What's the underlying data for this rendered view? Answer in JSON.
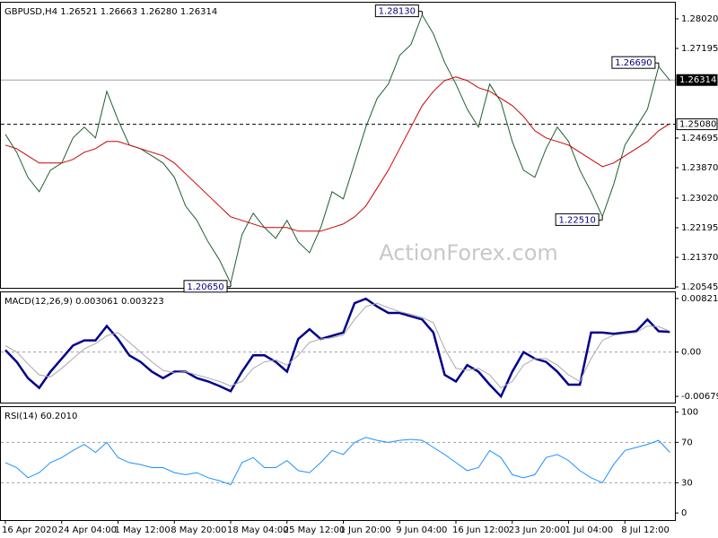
{
  "chart_data": [
    {
      "type": "line",
      "title": "GBPUSD,H4  1.26521 1.26663 1.26280 1.26314",
      "watermark": "ActionForex.com",
      "series": [
        {
          "color": "#1f5f2f",
          "values": [
            1.248,
            1.243,
            1.236,
            1.232,
            1.238,
            1.24,
            1.247,
            1.25,
            1.247,
            1.26,
            1.252,
            1.245,
            1.244,
            1.242,
            1.24,
            1.236,
            1.228,
            1.224,
            1.218,
            1.213,
            1.2065,
            1.22,
            1.226,
            1.222,
            1.219,
            1.224,
            1.218,
            1.215,
            1.222,
            1.232,
            1.23,
            1.24,
            1.25,
            1.258,
            1.262,
            1.27,
            1.273,
            1.2813,
            1.276,
            1.268,
            1.262,
            1.255,
            1.25,
            1.262,
            1.257,
            1.246,
            1.238,
            1.236,
            1.244,
            1.25,
            1.246,
            1.238,
            1.232,
            1.2251,
            1.234,
            1.245,
            1.25,
            1.255,
            1.2669,
            1.263
          ]
        },
        {
          "color": "#cc0000",
          "values": [
            1.245,
            1.244,
            1.242,
            1.24,
            1.24,
            1.24,
            1.241,
            1.243,
            1.244,
            1.246,
            1.246,
            1.245,
            1.244,
            1.243,
            1.242,
            1.24,
            1.237,
            1.234,
            1.231,
            1.228,
            1.225,
            1.224,
            1.223,
            1.222,
            1.222,
            1.222,
            1.221,
            1.221,
            1.221,
            1.222,
            1.223,
            1.225,
            1.228,
            1.233,
            1.238,
            1.244,
            1.25,
            1.256,
            1.26,
            1.263,
            1.264,
            1.263,
            1.261,
            1.26,
            1.258,
            1.256,
            1.253,
            1.249,
            1.247,
            1.246,
            1.245,
            1.243,
            1.241,
            1.239,
            1.24,
            1.242,
            1.244,
            1.246,
            1.249,
            1.251
          ]
        }
      ],
      "ylim": [
        1.2052,
        1.2847
      ],
      "yticks": [
        {
          "value": 1.2802,
          "label": "1.28020"
        },
        1.27195,
        1.24695,
        {
          "value": 1.2387,
          "label": "1.23870"
        },
        {
          "value": 1.2302,
          "label": "1.23020"
        },
        1.22195,
        {
          "value": 1.2137,
          "label": "1.21370"
        },
        1.20545
      ],
      "hlines": [
        1.26314,
        {
          "value": 1.2508,
          "label": "1.25080"
        }
      ],
      "annotations": [
        {
          "value": 1.2813,
          "label": "1.28130"
        },
        {
          "value": 1.2669,
          "label": "1.26690"
        },
        {
          "value": 1.2251,
          "label": "1.22510"
        },
        {
          "value": 1.2065,
          "label": "1.20650"
        }
      ]
    },
    {
      "type": "line",
      "title": "MACD(12,26,9) 0.003061 0.003223",
      "series": [
        {
          "color": "#00008b",
          "values": [
            0.0003,
            -0.0015,
            -0.004,
            -0.0055,
            -0.003,
            -0.001,
            0.001,
            0.0018,
            0.0018,
            0.004,
            0.002,
            -0.0005,
            -0.0015,
            -0.003,
            -0.004,
            -0.003,
            -0.003,
            -0.004,
            -0.0045,
            -0.0052,
            -0.006,
            -0.003,
            -0.0005,
            -0.0005,
            -0.0015,
            -0.003,
            0.002,
            0.0035,
            0.002,
            0.0025,
            0.003,
            0.0075,
            0.0082,
            0.007,
            0.006,
            0.006,
            0.0055,
            0.005,
            0.003,
            -0.0035,
            -0.0045,
            -0.002,
            -0.003,
            -0.005,
            -0.0068,
            -0.003,
            0,
            -0.001,
            -0.0015,
            -0.003,
            -0.005,
            -0.005,
            0.003,
            0.003,
            0.0028,
            0.003,
            0.0032,
            0.005,
            0.0032,
            0.0031
          ]
        },
        {
          "color": "#a9a9a9",
          "values": [
            0.001,
            0,
            -0.0018,
            -0.0035,
            -0.0038,
            -0.0025,
            -0.001,
            0.0005,
            0.0013,
            0.0025,
            0.003,
            0.0015,
            0,
            -0.0015,
            -0.0028,
            -0.0032,
            -0.003,
            -0.0035,
            -0.004,
            -0.0045,
            -0.0052,
            -0.0045,
            -0.0025,
            -0.0015,
            -0.0012,
            -0.002,
            -0.0005,
            0.0015,
            0.002,
            0.0022,
            0.0026,
            0.005,
            0.007,
            0.0075,
            0.0068,
            0.0062,
            0.0058,
            0.0053,
            0.0045,
            0.0005,
            -0.0025,
            -0.0028,
            -0.0025,
            -0.0035,
            -0.0055,
            -0.0045,
            -0.002,
            -0.001,
            -0.001,
            -0.002,
            -0.0035,
            -0.0045,
            -0.001,
            0.0018,
            0.0026,
            0.0028,
            0.003,
            0.004,
            0.0039,
            0.0032
          ]
        }
      ],
      "ylim": [
        -0.00775,
        0.00917
      ],
      "yticks": [
        0.008213,
        {
          "value": 0,
          "label": "0.00"
        },
        -0.006796
      ],
      "dashed_levels": [
        0
      ]
    },
    {
      "type": "line",
      "title": "RSI(14) 60.2010",
      "series": [
        {
          "color": "#1e90ff",
          "values": [
            50,
            45,
            35,
            40,
            50,
            55,
            62,
            68,
            60,
            70,
            55,
            50,
            48,
            45,
            45,
            40,
            38,
            40,
            35,
            32,
            28,
            50,
            55,
            45,
            45,
            52,
            42,
            40,
            50,
            62,
            58,
            70,
            75,
            72,
            70,
            72,
            73,
            72,
            65,
            58,
            50,
            42,
            45,
            62,
            55,
            38,
            35,
            38,
            55,
            58,
            52,
            42,
            35,
            30,
            48,
            62,
            65,
            68,
            72,
            60
          ]
        }
      ],
      "ylim": [
        -7,
        105
      ],
      "yticks": [
        100,
        70,
        30,
        0
      ],
      "dashed_levels": [
        70,
        30
      ],
      "categories": [
        "16 Apr 2020",
        null,
        null,
        null,
        null,
        "24 Apr 04:00",
        null,
        null,
        null,
        null,
        "1 May 12:00",
        null,
        null,
        null,
        null,
        "8 May 20:00",
        null,
        null,
        null,
        null,
        "18 May 04:00",
        null,
        null,
        null,
        null,
        "25 May 12:00",
        null,
        null,
        null,
        null,
        "1 Jun 20:00",
        null,
        null,
        null,
        null,
        "9 Jun 04:00",
        null,
        null,
        null,
        null,
        "16 Jun 12:00",
        null,
        null,
        null,
        null,
        "23 Jun 20:00",
        null,
        null,
        null,
        null,
        "1 Jul 04:00",
        null,
        null,
        null,
        null,
        "8 Jul 12:00",
        null,
        null,
        null,
        null
      ]
    }
  ]
}
